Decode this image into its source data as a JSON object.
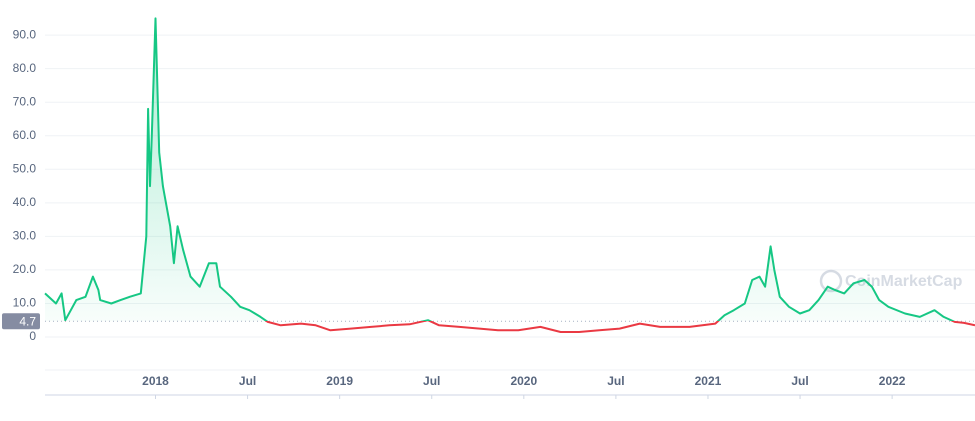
{
  "chart_data": {
    "type": "line",
    "x": [
      2017.4,
      2017.46,
      2017.49,
      2017.51,
      2017.54,
      2017.57,
      2017.62,
      2017.66,
      2017.69,
      2017.7,
      2017.76,
      2017.81,
      2017.86,
      2017.92,
      2017.95,
      2017.96,
      2017.97,
      2017.98,
      2018.0,
      2018.02,
      2018.04,
      2018.05,
      2018.08,
      2018.1,
      2018.12,
      2018.15,
      2018.19,
      2018.24,
      2018.29,
      2018.33,
      2018.35,
      2018.41,
      2018.46,
      2018.51,
      2018.57,
      2018.61,
      2018.68,
      2018.79,
      2018.87,
      2018.95,
      2019.06,
      2019.17,
      2019.27,
      2019.38,
      2019.48,
      2019.54,
      2019.65,
      2019.76,
      2019.86,
      2019.97,
      2020.09,
      2020.2,
      2020.3,
      2020.41,
      2020.52,
      2020.63,
      2020.74,
      2020.9,
      2021.04,
      2021.09,
      2021.14,
      2021.2,
      2021.24,
      2021.28,
      2021.31,
      2021.34,
      2021.36,
      2021.39,
      2021.44,
      2021.5,
      2021.55,
      2021.6,
      2021.65,
      2021.69,
      2021.74,
      2021.79,
      2021.85,
      2021.89,
      2021.93,
      2021.98,
      2022.07,
      2022.15,
      2022.23,
      2022.28,
      2022.34,
      2022.39,
      2022.45
    ],
    "values": [
      13,
      10,
      13,
      5,
      8,
      11,
      12,
      18,
      14,
      11,
      10,
      11,
      12,
      13,
      30,
      68,
      45,
      60,
      95,
      55,
      45,
      42,
      33,
      22,
      33,
      26,
      18,
      15,
      22,
      22,
      15,
      12,
      9,
      8,
      6,
      4.5,
      3.5,
      4,
      3.5,
      2,
      2.5,
      3,
      3.5,
      3.8,
      5,
      3.5,
      3,
      2.5,
      2,
      2,
      3,
      1.5,
      1.5,
      2,
      2.5,
      4,
      3,
      3,
      4,
      6.5,
      8,
      10,
      17,
      18,
      15,
      27,
      20,
      12,
      9,
      7,
      8,
      11,
      15,
      14,
      13,
      16,
      17,
      15,
      11,
      9,
      7,
      6,
      8,
      6,
      4.5,
      4.2,
      3.5
    ],
    "baseline": 4.7,
    "colors": {
      "up": "#16c784",
      "down": "#ea3943"
    },
    "xlim": [
      2017.4,
      2022.45
    ],
    "xticks": [
      {
        "value": 2018,
        "label": "2018"
      },
      {
        "value": 2018.5,
        "label": "Jul"
      },
      {
        "value": 2019,
        "label": "2019"
      },
      {
        "value": 2019.5,
        "label": "Jul"
      },
      {
        "value": 2020,
        "label": "2020"
      },
      {
        "value": 2020.5,
        "label": "Jul"
      },
      {
        "value": 2021,
        "label": "2021"
      },
      {
        "value": 2021.5,
        "label": "Jul"
      },
      {
        "value": 2022,
        "label": "2022"
      }
    ],
    "ylim": [
      0,
      96
    ],
    "yticks": [
      0,
      {
        "value": 10,
        "label": "10.0"
      },
      {
        "value": 20,
        "label": "20.0"
      },
      {
        "value": 30,
        "label": "30.0"
      },
      {
        "value": 40,
        "label": "40.0"
      },
      {
        "value": 50,
        "label": "50.0"
      },
      {
        "value": 60,
        "label": "60.0"
      },
      {
        "value": 70,
        "label": "70.0"
      },
      {
        "value": 80,
        "label": "80.0"
      },
      {
        "value": 90,
        "label": "90.0"
      }
    ],
    "grid": true,
    "watermark": "CoinMarketCap"
  }
}
